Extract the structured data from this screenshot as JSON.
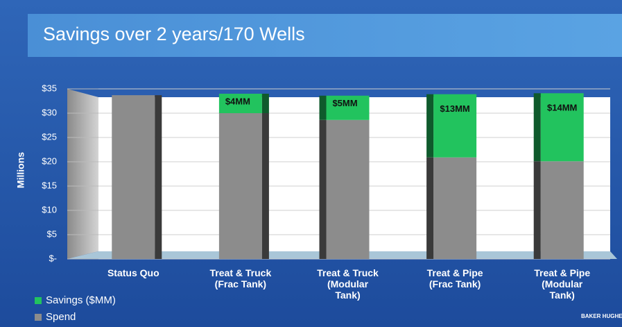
{
  "chart_data": {
    "type": "stacked_bar",
    "title": "Savings over 2 years/170 Wells",
    "y_label": "Millions",
    "categories": [
      "Status Quo",
      "Treat & Truck\n(Frac Tank)",
      "Treat & Truck\n(Modular\nTank)",
      "Treat & Pipe\n(Frac Tank)",
      "Treat & Pipe\n(Modular\nTank)"
    ],
    "series": [
      {
        "name": "Spend",
        "color": "#8c8c8c",
        "values": [
          33.7,
          30,
          28.6,
          20.9,
          20.1
        ]
      },
      {
        "name": "Savings ($MM)",
        "color": "#22c35e",
        "values": [
          0,
          4,
          5,
          13,
          14
        ],
        "value_labels": [
          null,
          "$4MM",
          "$5MM",
          "$13MM",
          "$14MM"
        ]
      }
    ],
    "legend_order": [
      1,
      0
    ],
    "ylim": [
      0,
      35
    ],
    "yticks": [
      {
        "value": 0,
        "label": "$-"
      },
      {
        "value": 5,
        "label": "$5"
      },
      {
        "value": 10,
        "label": "$10"
      },
      {
        "value": 15,
        "label": "$15"
      },
      {
        "value": 20,
        "label": "$20"
      },
      {
        "value": 25,
        "label": "$25"
      },
      {
        "value": 30,
        "label": "$30"
      },
      {
        "value": 35,
        "label": "$35"
      }
    ],
    "grid": true,
    "logo": "BAKER HUGHES"
  }
}
